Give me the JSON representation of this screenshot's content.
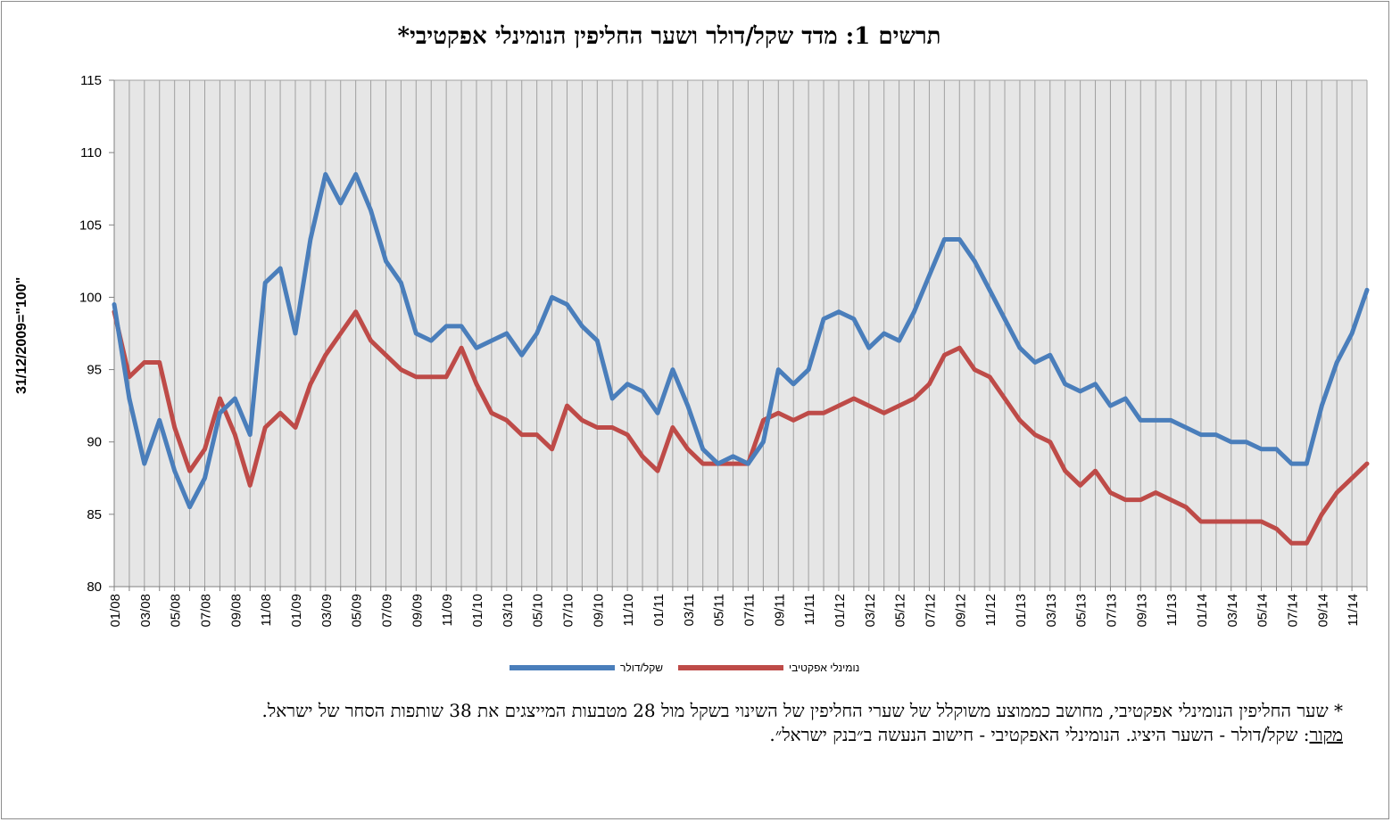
{
  "title": "תרשים 1: מדד שקל/דולר ושער החליפין הנומינלי אפקטיבי*",
  "colors": {
    "usd": "#4a7ebb",
    "eff": "#be4b48",
    "plot_bg": "#e6e6e6",
    "grid": "#a0a0a0"
  },
  "legend": {
    "usd": "שקל/דולר",
    "eff": "נומינלי אפקטיבי"
  },
  "footnote": {
    "line1": "* שער החליפין הנומינלי אפקטיבי, מחושב כממוצע משוקלל של שערי החליפין של השינוי בשקל מול 28 מטבעות המייצגים את 38 שותפות הסחר של ישראל.",
    "source_head": "מקור",
    "source_text": ": שקל/דולר - השער היציג. הנומינלי האפקטיבי - חישוב הנעשה ב״בנק ישראל״."
  },
  "chart_data": {
    "type": "line",
    "ylabel": "31/12/2009=\"100\"",
    "ylim": [
      80,
      115
    ],
    "yticks": [
      80,
      85,
      90,
      95,
      100,
      105,
      110,
      115
    ],
    "grid": true,
    "legend_position": "bottom",
    "x": [
      "01/08",
      "02/08",
      "03/08",
      "04/08",
      "05/08",
      "06/08",
      "07/08",
      "08/08",
      "09/08",
      "10/08",
      "11/08",
      "12/08",
      "01/09",
      "02/09",
      "03/09",
      "04/09",
      "05/09",
      "06/09",
      "07/09",
      "08/09",
      "09/09",
      "10/09",
      "11/09",
      "12/09",
      "01/10",
      "02/10",
      "03/10",
      "04/10",
      "05/10",
      "06/10",
      "07/10",
      "08/10",
      "09/10",
      "10/10",
      "11/10",
      "12/10",
      "01/11",
      "02/11",
      "03/11",
      "04/11",
      "05/11",
      "06/11",
      "07/11",
      "08/11",
      "09/11",
      "10/11",
      "11/11",
      "12/11",
      "01/12",
      "02/12",
      "03/12",
      "04/12",
      "05/12",
      "06/12",
      "07/12",
      "08/12",
      "09/12",
      "10/12",
      "11/12",
      "12/12",
      "01/13",
      "02/13",
      "03/13",
      "04/13",
      "05/13",
      "06/13",
      "07/13",
      "08/13",
      "09/13",
      "10/13",
      "11/13",
      "12/13",
      "01/14",
      "02/14",
      "03/14",
      "04/14",
      "05/14",
      "06/14",
      "07/14",
      "08/14",
      "09/14",
      "10/14",
      "11/14",
      "12/14"
    ],
    "x_tick_labels": [
      "01/08",
      "03/08",
      "05/08",
      "07/08",
      "09/08",
      "11/08",
      "01/09",
      "03/09",
      "05/09",
      "07/09",
      "09/09",
      "11/09",
      "01/10",
      "03/10",
      "05/10",
      "07/10",
      "09/10",
      "11/10",
      "01/11",
      "03/11",
      "05/11",
      "07/11",
      "09/11",
      "11/11",
      "01/12",
      "03/12",
      "05/12",
      "07/12",
      "09/12",
      "11/12",
      "01/13",
      "03/13",
      "05/13",
      "07/13",
      "09/13",
      "11/13",
      "01/14",
      "03/14",
      "05/14",
      "07/14",
      "09/14",
      "11/14"
    ],
    "series": [
      {
        "name": "שקל/דולר",
        "color": "#4a7ebb",
        "values": [
          99.5,
          93.0,
          88.5,
          91.5,
          88.0,
          85.5,
          87.5,
          92.0,
          93.0,
          90.5,
          101.0,
          102.0,
          97.5,
          104.0,
          108.5,
          106.5,
          108.5,
          106.0,
          102.5,
          101.0,
          97.5,
          97.0,
          98.0,
          98.0,
          96.5,
          97.0,
          97.5,
          96.0,
          97.5,
          100.0,
          99.5,
          98.0,
          97.0,
          93.0,
          94.0,
          93.5,
          92.0,
          95.0,
          92.5,
          89.5,
          88.5,
          89.0,
          88.5,
          90.0,
          95.0,
          94.0,
          95.0,
          98.5,
          99.0,
          98.5,
          96.5,
          97.5,
          97.0,
          99.0,
          101.5,
          104.0,
          104.0,
          102.5,
          100.5,
          98.5,
          96.5,
          95.5,
          96.0,
          94.0,
          93.5,
          94.0,
          92.5,
          93.0,
          91.5,
          91.5,
          91.5,
          91.0,
          90.5,
          90.5,
          90.0,
          90.0,
          89.5,
          89.5,
          88.5,
          88.5,
          92.5,
          95.5,
          97.5,
          100.5
        ]
      },
      {
        "name": "נומינלי אפקטיבי",
        "color": "#be4b48",
        "values": [
          99.0,
          94.5,
          95.5,
          95.5,
          91.0,
          88.0,
          89.5,
          93.0,
          90.5,
          87.0,
          91.0,
          92.0,
          91.0,
          94.0,
          96.0,
          97.5,
          99.0,
          97.0,
          96.0,
          95.0,
          94.5,
          94.5,
          94.5,
          96.5,
          94.0,
          92.0,
          91.5,
          90.5,
          90.5,
          89.5,
          92.5,
          91.5,
          91.0,
          91.0,
          90.5,
          89.0,
          88.0,
          91.0,
          89.5,
          88.5,
          88.5,
          88.5,
          88.5,
          91.5,
          92.0,
          91.5,
          92.0,
          92.0,
          92.5,
          93.0,
          92.5,
          92.0,
          92.5,
          93.0,
          94.0,
          96.0,
          96.5,
          95.0,
          94.5,
          93.0,
          91.5,
          90.5,
          90.0,
          88.0,
          87.0,
          88.0,
          86.5,
          86.0,
          86.0,
          86.5,
          86.0,
          85.5,
          84.5,
          84.5,
          84.5,
          84.5,
          84.5,
          84.0,
          83.0,
          83.0,
          85.0,
          86.5,
          87.5,
          88.5
        ]
      }
    ]
  }
}
